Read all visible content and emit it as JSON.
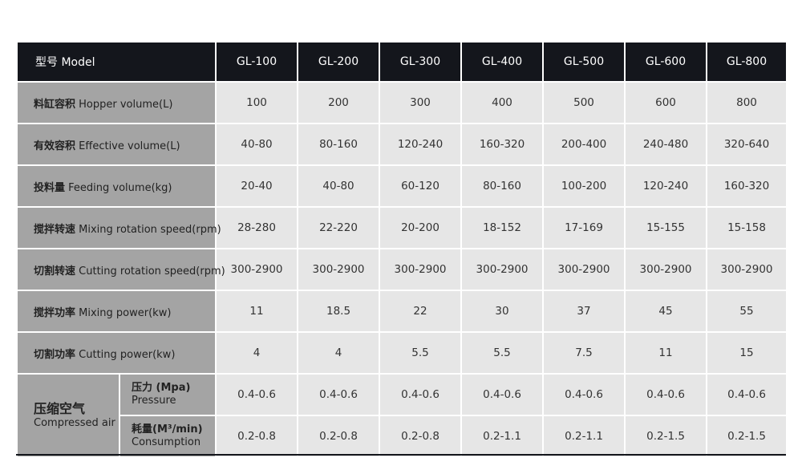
{
  "header": {
    "model_label": "型号 Model",
    "models": [
      "GL-100",
      "GL-200",
      "GL-300",
      "GL-400",
      "GL-500",
      "GL-600",
      "GL-800"
    ]
  },
  "rows": [
    {
      "cn": "料缸容积",
      "en": "Hopper volume(L)",
      "values": [
        "100",
        "200",
        "300",
        "400",
        "500",
        "600",
        "800"
      ]
    },
    {
      "cn": "有效容积",
      "en": "Effective volume(L)",
      "values": [
        "40-80",
        "80-160",
        "120-240",
        "160-320",
        "200-400",
        "240-480",
        "320-640"
      ]
    },
    {
      "cn": "投料量",
      "en": "Feeding volume(kg)",
      "values": [
        "20-40",
        "40-80",
        "60-120",
        "80-160",
        "100-200",
        "120-240",
        "160-320"
      ]
    },
    {
      "cn": "搅拌转速",
      "en": "Mixing rotation speed(rpm)",
      "values": [
        "28-280",
        "22-220",
        "20-200",
        "18-152",
        "17-169",
        "15-155",
        "15-158"
      ]
    },
    {
      "cn": "切割转速",
      "en": "Cutting rotation speed(rpm)",
      "values": [
        "300-2900",
        "300-2900",
        "300-2900",
        "300-2900",
        "300-2900",
        "300-2900",
        "300-2900"
      ]
    },
    {
      "cn": "搅拌功率",
      "en": "Mixing power(kw)",
      "values": [
        "11",
        "18.5",
        "22",
        "30",
        "37",
        "45",
        "55"
      ]
    },
    {
      "cn": "切割功率",
      "en": "Cutting power(kw)",
      "values": [
        "4",
        "4",
        "5.5",
        "5.5",
        "7.5",
        "11",
        "15"
      ]
    }
  ],
  "compressed_air": {
    "cn": "压缩空气",
    "en": "Compressed air",
    "pressure": {
      "cn": "压力 (Mpa)",
      "en": "Pressure",
      "values": [
        "0.4-0.6",
        "0.4-0.6",
        "0.4-0.6",
        "0.4-0.6",
        "0.4-0.6",
        "0.4-0.6",
        "0.4-0.6"
      ]
    },
    "consumption": {
      "cn": "耗量(M³/min)",
      "en": "Consumption",
      "values": [
        "0.2-0.8",
        "0.2-0.8",
        "0.2-0.8",
        "0.2-1.1",
        "0.2-1.1",
        "0.2-1.5",
        "0.2-1.5"
      ]
    }
  }
}
